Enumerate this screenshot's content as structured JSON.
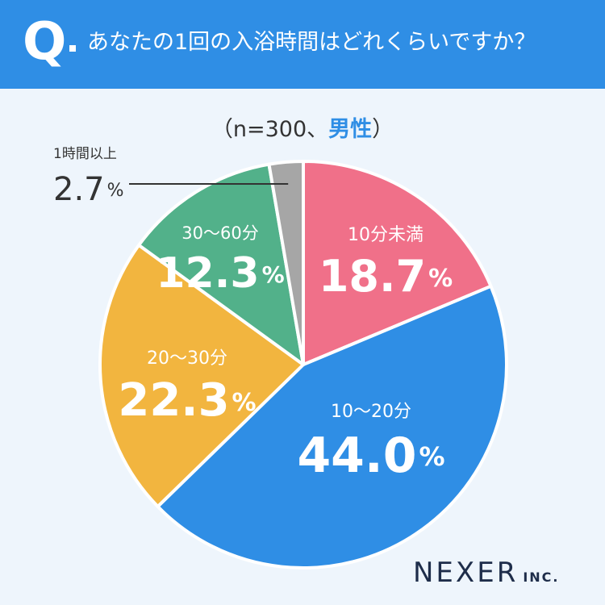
{
  "header": {
    "q_mark": "Q",
    "question": "あなたの1回の入浴時間はどれくらいですか？"
  },
  "sample": {
    "prefix": "（n=300、",
    "gender": "男性",
    "suffix": "）"
  },
  "colors": {
    "header": "#2f8ee5",
    "pink": "#f07089",
    "blue": "#2f8ee5",
    "yellow": "#f2b53f",
    "green": "#52b18a",
    "gray": "#a6a6a6"
  },
  "chart_data": {
    "type": "pie",
    "categories": [
      "10分未満",
      "10〜20分",
      "20〜30分",
      "30〜60分",
      "1時間以上"
    ],
    "values": [
      18.7,
      44.0,
      22.3,
      12.3,
      2.7
    ],
    "labels": [
      "18.7",
      "44.0",
      "22.3",
      "12.3",
      "2.7"
    ],
    "unit": "%",
    "colors": [
      "#f07089",
      "#2f8ee5",
      "#f2b53f",
      "#52b18a",
      "#a6a6a6"
    ],
    "start": "12 o'clock, clockwise"
  },
  "logo": {
    "main": "NEXER",
    "sub": "INC."
  }
}
